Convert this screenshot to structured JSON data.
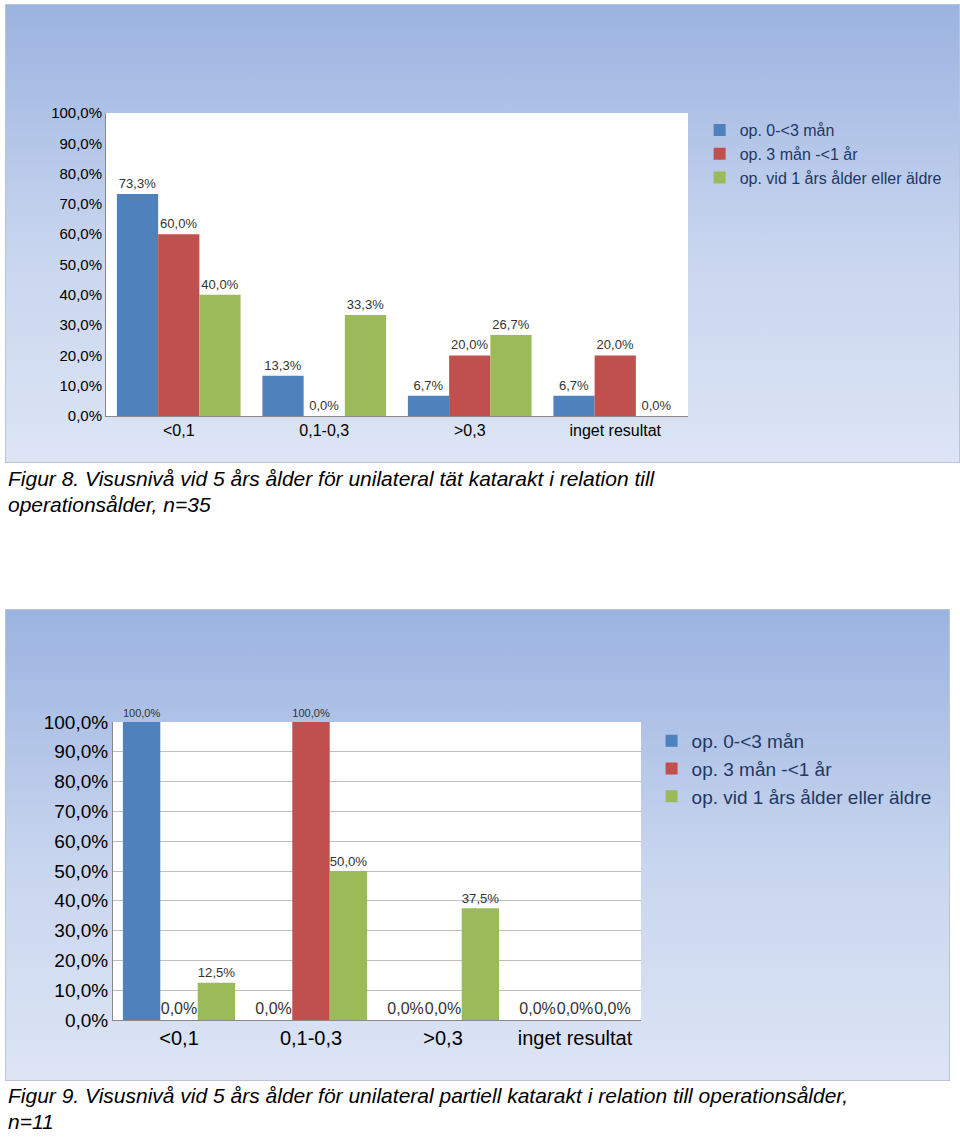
{
  "chart_data": [
    {
      "type": "bar",
      "title": "Figur 8. Visusnivå vid 5 års ålder för unilateral tät katarakt i relation till operationsålder, n=35",
      "categories": [
        "<0,1",
        "0,1-0,3",
        ">0,3",
        "inget resultat"
      ],
      "series": [
        {
          "name": "op. 0-<3 mån",
          "color": "#4f81bd",
          "values": [
            73.3,
            13.3,
            6.7,
            6.7
          ],
          "value_labels": [
            "73,3%",
            "13,3%",
            "6,7%",
            "6,7%"
          ]
        },
        {
          "name": "op. 3 mån -<1 år",
          "color": "#c0504d",
          "values": [
            60.0,
            0.0,
            20.0,
            20.0
          ],
          "value_labels": [
            "60,0%",
            "0,0%",
            "20,0%",
            "20,0%"
          ]
        },
        {
          "name": "op. vid 1 års ålder eller äldre",
          "color": "#9bbb59",
          "values": [
            40.0,
            33.3,
            26.7,
            0.0
          ],
          "value_labels": [
            "40,0%",
            "33,3%",
            "26,7%",
            "0,0%"
          ]
        }
      ],
      "ylim": [
        0,
        100
      ],
      "yticks": [
        {
          "value": 0,
          "label": "0,0%"
        },
        {
          "value": 10,
          "label": "10,0%"
        },
        {
          "value": 20,
          "label": "20,0%"
        },
        {
          "value": 30,
          "label": "30,0%"
        },
        {
          "value": 40,
          "label": "40,0%"
        },
        {
          "value": 50,
          "label": "50,0%"
        },
        {
          "value": 60,
          "label": "60,0%"
        },
        {
          "value": 70,
          "label": "70,0%"
        },
        {
          "value": 80,
          "label": "80,0%"
        },
        {
          "value": 90,
          "label": "90,0%"
        },
        {
          "value": 100,
          "label": "100,0%"
        }
      ],
      "grid": false,
      "legend": "right",
      "data_labels": true
    },
    {
      "type": "bar",
      "title": "Figur 9. Visusnivå vid 5 års ålder för unilateral partiell katarakt i relation till operationsålder, n=11",
      "categories": [
        "<0,1",
        "0,1-0,3",
        ">0,3",
        "inget resultat"
      ],
      "series": [
        {
          "name": "op. 0-<3 mån",
          "color": "#4f81bd",
          "values": [
            100.0,
            0.0,
            0.0,
            0.0
          ],
          "value_labels": [
            "100,0%",
            "0,0%",
            "0,0%",
            "0,0%"
          ]
        },
        {
          "name": "op. 3 mån -<1 år",
          "color": "#c0504d",
          "values": [
            0.0,
            100.0,
            0.0,
            0.0
          ],
          "value_labels": [
            "0,0%",
            "100,0%",
            "0,0%",
            "0,0%"
          ]
        },
        {
          "name": "op. vid 1 års ålder eller äldre",
          "color": "#9bbb59",
          "values": [
            12.5,
            50.0,
            37.5,
            0.0
          ],
          "value_labels": [
            "12,5%",
            "50,0%",
            "37,5%",
            "0,0%"
          ]
        }
      ],
      "ylim": [
        0,
        100
      ],
      "yticks": [
        {
          "value": 0,
          "label": "0,0%"
        },
        {
          "value": 10,
          "label": "10,0%"
        },
        {
          "value": 20,
          "label": "20,0%"
        },
        {
          "value": 30,
          "label": "30,0%"
        },
        {
          "value": 40,
          "label": "40,0%"
        },
        {
          "value": 50,
          "label": "50,0%"
        },
        {
          "value": 60,
          "label": "60,0%"
        },
        {
          "value": 70,
          "label": "70,0%"
        },
        {
          "value": 80,
          "label": "80,0%"
        },
        {
          "value": 90,
          "label": "90,0%"
        },
        {
          "value": 100,
          "label": "100,0%"
        }
      ],
      "grid": true,
      "legend": "right",
      "data_labels": true
    }
  ]
}
